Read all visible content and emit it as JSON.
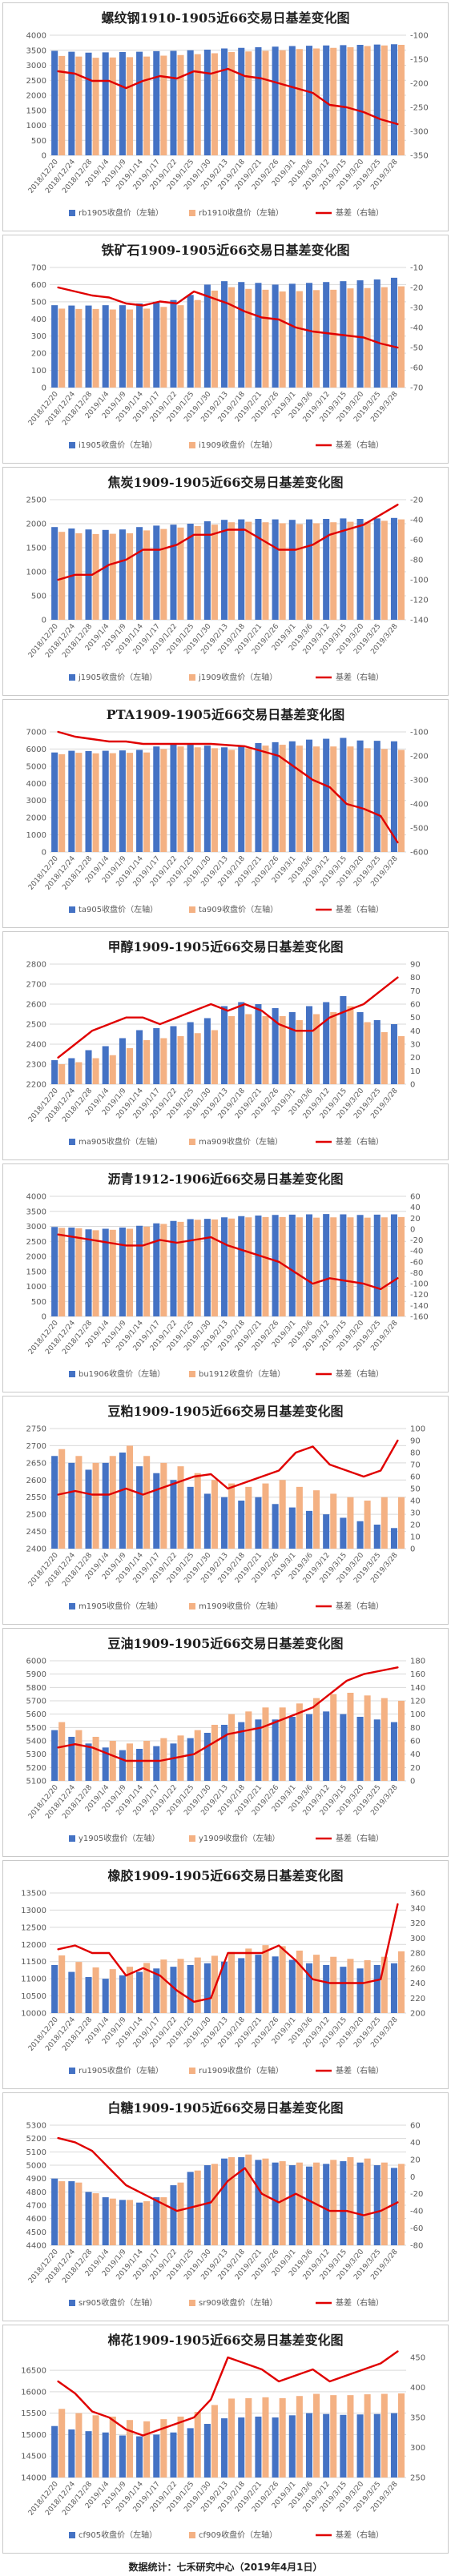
{
  "footer": "数据统计：七禾研究中心（2019年4月1日）",
  "colors": {
    "bar_a": "#4472c4",
    "bar_b": "#f4b183",
    "line": "#e00000",
    "grid": "#d9d9d9",
    "axis_text": "#595959"
  },
  "x_dates": [
    "2018/12/20",
    "2018/12/24",
    "2018/12/28",
    "2019/1/4",
    "2019/1/9",
    "2019/1/14",
    "2019/1/17",
    "2019/1/22",
    "2019/1/25",
    "2019/1/30",
    "2019/2/13",
    "2019/2/18",
    "2019/2/21",
    "2019/2/26",
    "2019/3/1",
    "2019/3/6",
    "2019/3/12",
    "2019/3/15",
    "2019/3/20",
    "2019/3/25",
    "2019/3/28"
  ],
  "chart_data": [
    {
      "type": "bar+line",
      "title": "螺纹钢1910-1905近66交易日基差变化图",
      "legend": [
        "rb1905收盘价（左轴）",
        "rb1910收盘价（左轴）",
        "基差（右轴）"
      ],
      "y_left": [
        0,
        4000,
        500
      ],
      "y_right": [
        -350,
        -100,
        50
      ],
      "bar_a": [
        3480,
        3450,
        3420,
        3430,
        3440,
        3450,
        3470,
        3480,
        3500,
        3520,
        3560,
        3580,
        3600,
        3620,
        3640,
        3650,
        3660,
        3670,
        3680,
        3690,
        3700
      ],
      "bar_b": [
        3310,
        3290,
        3250,
        3260,
        3270,
        3290,
        3320,
        3340,
        3370,
        3400,
        3440,
        3460,
        3480,
        3500,
        3540,
        3560,
        3580,
        3600,
        3640,
        3660,
        3680
      ],
      "line_pts": [
        -175,
        -180,
        -195,
        -195,
        -210,
        -195,
        -185,
        -190,
        -175,
        -180,
        -170,
        -185,
        -190,
        -200,
        -210,
        -220,
        -245,
        -250,
        -260,
        -275,
        -285
      ]
    },
    {
      "type": "bar+line",
      "title": "铁矿石1909-1905近66交易日基差变化图",
      "legend": [
        "i1905收盘价（左轴）",
        "i1909收盘价（左轴）",
        "基差（右轴）"
      ],
      "y_left": [
        0,
        700,
        100
      ],
      "y_right": [
        -70,
        -10,
        10
      ],
      "bar_a": [
        480,
        478,
        478,
        480,
        480,
        490,
        500,
        510,
        540,
        600,
        620,
        615,
        610,
        600,
        605,
        610,
        615,
        620,
        625,
        630,
        640
      ],
      "bar_b": [
        460,
        458,
        458,
        455,
        455,
        460,
        470,
        480,
        510,
        565,
        585,
        575,
        570,
        560,
        562,
        568,
        570,
        578,
        580,
        585,
        590
      ],
      "line_pts": [
        -20,
        -22,
        -24,
        -25,
        -28,
        -29,
        -27,
        -28,
        -22,
        -25,
        -28,
        -32,
        -35,
        -36,
        -40,
        -42,
        -43,
        -44,
        -45,
        -48,
        -50
      ]
    },
    {
      "type": "bar+line",
      "title": "焦炭1909-1905近66交易日基差变化图",
      "legend": [
        "j1905收盘价（左轴）",
        "j1909收盘价（左轴）",
        "基差（右轴）"
      ],
      "y_left": [
        0,
        2500,
        500
      ],
      "y_right": [
        -140,
        -20,
        20
      ],
      "bar_a": [
        1930,
        1900,
        1880,
        1870,
        1880,
        1930,
        1960,
        1980,
        2000,
        2050,
        2080,
        2090,
        2100,
        2090,
        2080,
        2090,
        2100,
        2110,
        2100,
        2110,
        2120
      ],
      "bar_b": [
        1830,
        1800,
        1785,
        1790,
        1800,
        1860,
        1890,
        1920,
        1950,
        1980,
        2030,
        2040,
        2030,
        2010,
        1990,
        2010,
        2030,
        2040,
        2040,
        2060,
        2090
      ],
      "line_pts": [
        -100,
        -95,
        -95,
        -85,
        -80,
        -70,
        -70,
        -65,
        -55,
        -55,
        -50,
        -50,
        -60,
        -70,
        -70,
        -65,
        -55,
        -50,
        -45,
        -35,
        -25
      ]
    },
    {
      "type": "bar+line",
      "title": "PTA1909-1905近66交易日基差变化图",
      "legend": [
        "ta905收盘价（左轴）",
        "ta909收盘价（左轴）",
        "基差（右轴）"
      ],
      "y_left": [
        0,
        7000,
        1000
      ],
      "y_right": [
        -600,
        -100,
        100
      ],
      "bar_a": [
        5800,
        5900,
        5880,
        5900,
        5920,
        5950,
        6150,
        6300,
        6250,
        6200,
        6100,
        6200,
        6350,
        6400,
        6450,
        6550,
        6600,
        6650,
        6500,
        6480,
        6450
      ],
      "bar_b": [
        5700,
        5780,
        5750,
        5760,
        5780,
        5800,
        6000,
        6150,
        6100,
        6050,
        5950,
        6050,
        6200,
        6250,
        6200,
        6150,
        6150,
        6150,
        6050,
        6000,
        5950
      ],
      "line_pts": [
        -100,
        -120,
        -130,
        -140,
        -140,
        -150,
        -150,
        -150,
        -150,
        -150,
        -155,
        -160,
        -180,
        -200,
        -250,
        -300,
        -330,
        -400,
        -420,
        -450,
        -560
      ]
    },
    {
      "type": "bar+line",
      "title": "甲醇1909-1905近66交易日基差变化图",
      "legend": [
        "ma905收盘价（左轴）",
        "ma909收盘价（左轴）",
        "基差（右轴）"
      ],
      "y_left": [
        2200,
        2800,
        100
      ],
      "y_right": [
        0,
        90,
        10
      ],
      "bar_a": [
        2320,
        2330,
        2370,
        2390,
        2430,
        2470,
        2480,
        2490,
        2510,
        2530,
        2590,
        2610,
        2600,
        2580,
        2560,
        2590,
        2610,
        2640,
        2560,
        2520,
        2500
      ],
      "bar_b": [
        2300,
        2310,
        2330,
        2345,
        2380,
        2420,
        2430,
        2440,
        2455,
        2470,
        2540,
        2550,
        2540,
        2540,
        2520,
        2550,
        2560,
        2590,
        2510,
        2460,
        2440
      ],
      "line_pts": [
        20,
        30,
        40,
        45,
        50,
        50,
        45,
        50,
        55,
        60,
        55,
        60,
        55,
        45,
        40,
        40,
        50,
        55,
        60,
        70,
        80
      ]
    },
    {
      "type": "bar+line",
      "title": "沥青1912-1906近66交易日基差变化图",
      "legend": [
        "bu1906收盘价（左轴）",
        "bu1912收盘价（左轴）",
        "基差（右轴）"
      ],
      "y_left": [
        0,
        4000,
        500
      ],
      "y_right": [
        -160,
        60,
        20
      ],
      "bar_a": [
        2980,
        2960,
        2900,
        2920,
        2960,
        3020,
        3100,
        3180,
        3240,
        3250,
        3300,
        3340,
        3360,
        3380,
        3390,
        3400,
        3410,
        3400,
        3380,
        3390,
        3400
      ],
      "bar_b": [
        2950,
        2935,
        2870,
        2885,
        2920,
        2990,
        3080,
        3150,
        3220,
        3230,
        3260,
        3300,
        3310,
        3310,
        3300,
        3290,
        3300,
        3300,
        3290,
        3300,
        3310
      ],
      "line_pts": [
        -10,
        -15,
        -20,
        -25,
        -30,
        -30,
        -20,
        -25,
        -20,
        -15,
        -30,
        -40,
        -50,
        -60,
        -80,
        -100,
        -90,
        -95,
        -100,
        -110,
        -90
      ]
    },
    {
      "type": "bar+line",
      "title": "豆粕1909-1905近66交易日基差变化图",
      "legend": [
        "m1905收盘价（左轴）",
        "m1909收盘价（左轴）",
        "基差（右轴）"
      ],
      "y_left": [
        2400,
        2750,
        50
      ],
      "y_right": [
        0,
        100,
        10
      ],
      "bar_a": [
        2670,
        2650,
        2630,
        2650,
        2680,
        2640,
        2620,
        2600,
        2580,
        2560,
        2550,
        2540,
        2550,
        2530,
        2520,
        2510,
        2500,
        2490,
        2480,
        2470,
        2460
      ],
      "bar_b": [
        2690,
        2670,
        2650,
        2670,
        2700,
        2670,
        2650,
        2640,
        2620,
        2600,
        2590,
        2580,
        2590,
        2600,
        2580,
        2570,
        2560,
        2550,
        2540,
        2550,
        2550
      ],
      "line_pts": [
        45,
        48,
        45,
        45,
        50,
        45,
        50,
        55,
        60,
        62,
        50,
        55,
        60,
        65,
        80,
        85,
        70,
        65,
        60,
        65,
        90
      ]
    },
    {
      "type": "bar+line",
      "title": "豆油1909-1905近66交易日基差变化图",
      "legend": [
        "y1905收盘价（左轴）",
        "y1909收盘价（左轴）",
        "基差（右轴）"
      ],
      "y_left": [
        5100,
        6000,
        100
      ],
      "y_right": [
        0,
        180,
        20
      ],
      "bar_a": [
        5480,
        5430,
        5380,
        5350,
        5330,
        5340,
        5360,
        5380,
        5420,
        5460,
        5520,
        5540,
        5560,
        5560,
        5580,
        5600,
        5620,
        5600,
        5580,
        5560,
        5540
      ],
      "bar_b": [
        5540,
        5480,
        5430,
        5400,
        5380,
        5400,
        5420,
        5440,
        5480,
        5520,
        5600,
        5620,
        5650,
        5650,
        5680,
        5720,
        5750,
        5760,
        5740,
        5720,
        5700
      ],
      "line_pts": [
        50,
        55,
        50,
        40,
        30,
        30,
        30,
        35,
        40,
        55,
        70,
        75,
        80,
        90,
        100,
        110,
        130,
        150,
        160,
        165,
        170
      ]
    },
    {
      "type": "bar+line",
      "title": "橡胶1909-1905近66交易日基差变化图",
      "legend": [
        "ru1905收盘价（左轴）",
        "ru1909收盘价（左轴）",
        "基差（右轴）"
      ],
      "y_left": [
        10000,
        13500,
        500
      ],
      "y_right": [
        200,
        360,
        20
      ],
      "bar_a": [
        11400,
        11200,
        11050,
        11000,
        11100,
        11200,
        11300,
        11350,
        11400,
        11450,
        11500,
        11600,
        11700,
        11650,
        11550,
        11450,
        11400,
        11350,
        11300,
        11400,
        11450
      ],
      "bar_b": [
        11680,
        11490,
        11330,
        11280,
        11350,
        11460,
        11560,
        11580,
        11620,
        11670,
        11780,
        11880,
        11980,
        11950,
        11820,
        11700,
        11640,
        11580,
        11540,
        11640,
        11800
      ],
      "line_pts": [
        285,
        290,
        280,
        280,
        250,
        260,
        250,
        230,
        215,
        220,
        280,
        280,
        280,
        290,
        270,
        245,
        240,
        240,
        240,
        245,
        345
      ]
    },
    {
      "type": "bar+line",
      "title": "白糖1909-1905近66交易日基差变化图",
      "legend": [
        "sr905收盘价（左轴）",
        "sr909收盘价（左轴）",
        "基差（右轴）"
      ],
      "y_left": [
        4400,
        5300,
        100
      ],
      "y_right": [
        -80,
        60,
        20
      ],
      "bar_a": [
        4900,
        4880,
        4800,
        4760,
        4740,
        4720,
        4760,
        4850,
        4950,
        5000,
        5050,
        5060,
        5040,
        5020,
        5000,
        4990,
        5010,
        5030,
        5020,
        5000,
        4980
      ],
      "bar_b": [
        4880,
        4870,
        4790,
        4750,
        4740,
        4730,
        4760,
        4870,
        4960,
        5010,
        5060,
        5080,
        5050,
        5030,
        5020,
        5020,
        5040,
        5060,
        5050,
        5020,
        5010
      ],
      "line_pts": [
        45,
        40,
        30,
        10,
        -10,
        -20,
        -30,
        -40,
        -35,
        -30,
        -5,
        10,
        -20,
        -30,
        -20,
        -30,
        -40,
        -40,
        -45,
        -40,
        -30
      ]
    },
    {
      "type": "bar+line",
      "title": "棉花1909-1905近66交易日基差变化图",
      "legend": [
        "cf905收盘价（左轴）",
        "cf909收盘价（左轴）",
        "基差（右轴）"
      ],
      "y_left": [
        14000,
        16800,
        500
      ],
      "y_right": [
        250,
        450,
        50
      ],
      "bar_a": [
        15200,
        15120,
        15080,
        15050,
        14980,
        14960,
        15000,
        15050,
        15150,
        15250,
        15380,
        15400,
        15420,
        15400,
        15450,
        15500,
        15480,
        15460,
        15470,
        15480,
        15500
      ],
      "bar_b": [
        15600,
        15500,
        15450,
        15420,
        15340,
        15310,
        15360,
        15420,
        15530,
        15690,
        15840,
        15850,
        15870,
        15850,
        15900,
        15950,
        15920,
        15920,
        15940,
        15950,
        15960
      ],
      "line_pts": [
        410,
        390,
        360,
        350,
        330,
        320,
        330,
        340,
        350,
        380,
        450,
        440,
        430,
        410,
        420,
        430,
        410,
        420,
        430,
        440,
        460
      ]
    }
  ]
}
